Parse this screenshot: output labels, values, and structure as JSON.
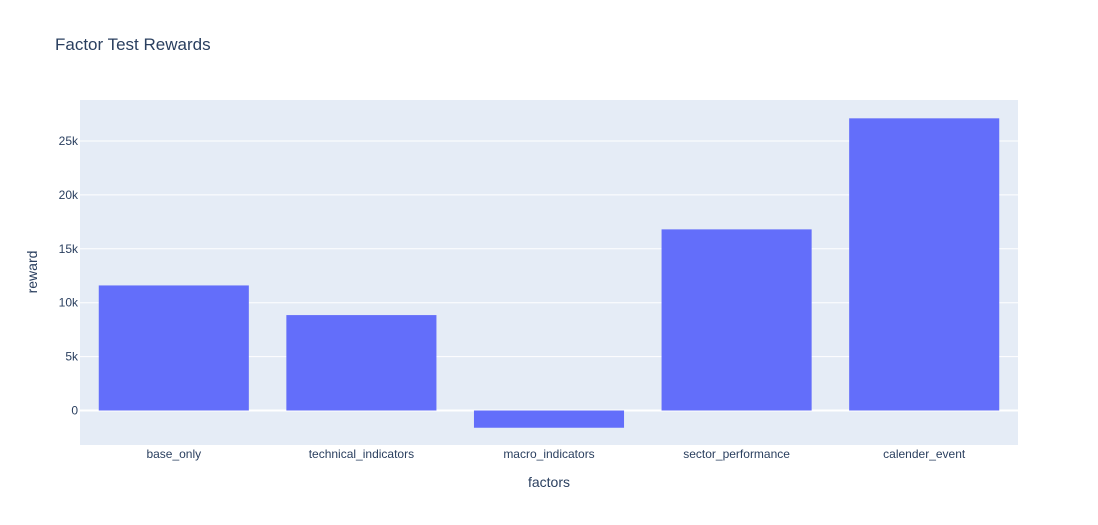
{
  "chart_data": {
    "type": "bar",
    "title": "Factor Test Rewards",
    "xlabel": "factors",
    "ylabel": "reward",
    "categories": [
      "base_only",
      "technical_indicators",
      "macro_indicators",
      "sector_performance",
      "calender_event"
    ],
    "values": [
      11600,
      8850,
      -1600,
      16800,
      27100
    ],
    "ylim": [
      -3200,
      28800
    ],
    "yticks": [
      0,
      5000,
      10000,
      15000,
      20000,
      25000
    ],
    "ytick_labels": [
      "0",
      "5k",
      "10k",
      "15k",
      "20k",
      "25k"
    ],
    "grid": true,
    "legend": "none",
    "colors": {
      "bar": "#636efa",
      "plot_bg": "#e5ecf6",
      "grid": "#ffffff",
      "text": "#2a3f5f"
    }
  }
}
